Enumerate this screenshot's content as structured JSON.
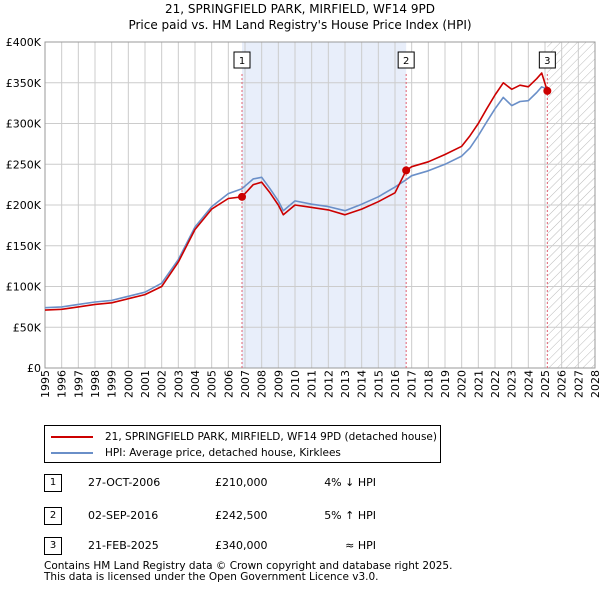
{
  "title_line1": "21, SPRINGFIELD PARK, MIRFIELD, WF14 9PD",
  "title_line2": "Price paid vs. HM Land Registry's House Price Index (HPI)",
  "colors": {
    "property": "#cc0000",
    "hpi": "#6a8fc8",
    "band": "#e8eefa",
    "marker_line": "#e06070",
    "grid": "#cccccc"
  },
  "chart_data": {
    "type": "line",
    "title": "Price paid vs. HM Land Registry's House Price Index (HPI)",
    "xlabel": "",
    "ylabel": "",
    "xlim": [
      1995,
      2028
    ],
    "ylim": [
      0,
      400000
    ],
    "y_ticks": [
      0,
      50000,
      100000,
      150000,
      200000,
      250000,
      300000,
      350000,
      400000
    ],
    "y_tick_labels": [
      "£0",
      "£50K",
      "£100K",
      "£150K",
      "£200K",
      "£250K",
      "£300K",
      "£350K",
      "£400K"
    ],
    "x_ticks": [
      "1995",
      "1996",
      "1997",
      "1998",
      "1999",
      "2000",
      "2001",
      "2002",
      "2003",
      "2004",
      "2005",
      "2006",
      "2007",
      "2008",
      "2009",
      "2010",
      "2011",
      "2012",
      "2013",
      "2014",
      "2015",
      "2016",
      "2017",
      "2018",
      "2019",
      "2020",
      "2021",
      "2022",
      "2023",
      "2024",
      "2025",
      "2026",
      "2027",
      "2028"
    ],
    "shaded_range": [
      2006.82,
      2016.67
    ],
    "future_hatch_from": 2025.14,
    "series": [
      {
        "name": "21, SPRINGFIELD PARK, MIRFIELD, WF14 9PD (detached house)",
        "x": [
          1995.0,
          1996.0,
          1997.0,
          1998.0,
          1999.0,
          2000.0,
          2001.0,
          2002.0,
          2003.0,
          2004.0,
          2005.0,
          2006.0,
          2006.82,
          2007.5,
          2008.0,
          2008.5,
          2009.0,
          2009.3,
          2010.0,
          2011.0,
          2012.0,
          2013.0,
          2014.0,
          2015.0,
          2016.0,
          2016.67,
          2017.0,
          2018.0,
          2019.0,
          2020.0,
          2020.5,
          2021.0,
          2021.5,
          2022.0,
          2022.5,
          2023.0,
          2023.5,
          2024.0,
          2024.5,
          2024.8,
          2025.14
        ],
        "y": [
          71000,
          72000,
          75000,
          78000,
          80000,
          85000,
          90000,
          100000,
          130000,
          170000,
          195000,
          208000,
          210000,
          225000,
          228000,
          215000,
          200000,
          188000,
          200000,
          197000,
          194000,
          188000,
          195000,
          204000,
          215000,
          242500,
          247000,
          253000,
          262000,
          272000,
          285000,
          300000,
          318000,
          335000,
          350000,
          342000,
          347000,
          345000,
          355000,
          362000,
          340000
        ]
      },
      {
        "name": "HPI: Average price, detached house, Kirklees",
        "x": [
          1995.0,
          1996.0,
          1997.0,
          1998.0,
          1999.0,
          2000.0,
          2001.0,
          2002.0,
          2003.0,
          2004.0,
          2005.0,
          2006.0,
          2006.82,
          2007.5,
          2008.0,
          2008.5,
          2009.0,
          2009.3,
          2010.0,
          2011.0,
          2012.0,
          2013.0,
          2014.0,
          2015.0,
          2016.0,
          2016.67,
          2017.0,
          2018.0,
          2019.0,
          2020.0,
          2020.5,
          2021.0,
          2021.5,
          2022.0,
          2022.5,
          2023.0,
          2023.5,
          2024.0,
          2024.5,
          2024.8,
          2025.14
        ],
        "y": [
          74000,
          75000,
          78000,
          81000,
          83000,
          88000,
          93000,
          104000,
          133000,
          173000,
          198000,
          214000,
          220000,
          232000,
          234000,
          220000,
          205000,
          193000,
          205000,
          201000,
          198000,
          193000,
          201000,
          210000,
          222000,
          231000,
          236000,
          242000,
          250000,
          260000,
          270000,
          285000,
          302000,
          318000,
          332000,
          322000,
          327000,
          328000,
          338000,
          345000,
          342000
        ]
      }
    ],
    "sales": [
      {
        "label": "1",
        "x": 2006.82,
        "y": 210000
      },
      {
        "label": "2",
        "x": 2016.67,
        "y": 242500
      },
      {
        "label": "3",
        "x": 2025.14,
        "y": 340000
      }
    ]
  },
  "legend": {
    "property": "21, SPRINGFIELD PARK, MIRFIELD, WF14 9PD (detached house)",
    "hpi": "HPI: Average price, detached house, Kirklees"
  },
  "transactions": [
    {
      "num": "1",
      "date": "27-OCT-2006",
      "price": "£210,000",
      "hpi": "4% ↓ HPI"
    },
    {
      "num": "2",
      "date": "02-SEP-2016",
      "price": "£242,500",
      "hpi": "5% ↑ HPI"
    },
    {
      "num": "3",
      "date": "21-FEB-2025",
      "price": "£340,000",
      "hpi": "≈ HPI"
    }
  ],
  "footer_line1": "Contains HM Land Registry data © Crown copyright and database right 2025.",
  "footer_line2": "This data is licensed under the Open Government Licence v3.0."
}
